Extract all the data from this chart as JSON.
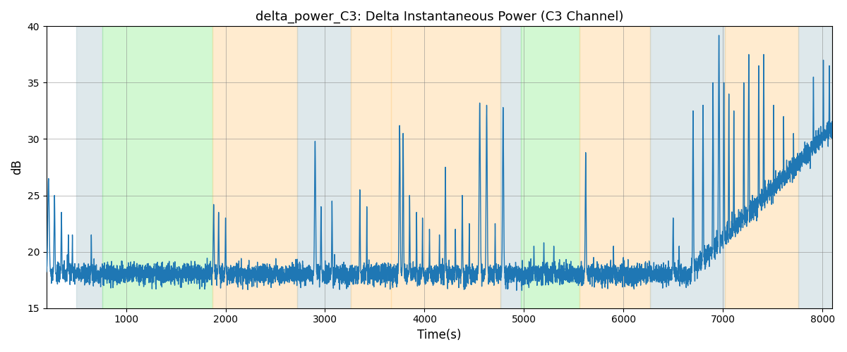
{
  "title": "delta_power_C3: Delta Instantaneous Power (C3 Channel)",
  "xlabel": "Time(s)",
  "ylabel": "dB",
  "xlim": [
    200,
    8100
  ],
  "ylim": [
    15,
    40
  ],
  "yticks": [
    15,
    20,
    25,
    30,
    35,
    40
  ],
  "xticks": [
    1000,
    2000,
    3000,
    4000,
    5000,
    6000,
    7000,
    8000
  ],
  "line_color": "#1f77b4",
  "line_width": 1.0,
  "bg_bands": [
    {
      "xmin": 500,
      "xmax": 760,
      "color": "#AEC6CF",
      "alpha": 0.4
    },
    {
      "xmin": 760,
      "xmax": 1870,
      "color": "#90EE90",
      "alpha": 0.4
    },
    {
      "xmin": 1870,
      "xmax": 2720,
      "color": "#FFD9A0",
      "alpha": 0.5
    },
    {
      "xmin": 2720,
      "xmax": 3260,
      "color": "#AEC6CF",
      "alpha": 0.4
    },
    {
      "xmin": 3260,
      "xmax": 3660,
      "color": "#FFD9A0",
      "alpha": 0.5
    },
    {
      "xmin": 3660,
      "xmax": 4760,
      "color": "#FFD9A0",
      "alpha": 0.5
    },
    {
      "xmin": 4760,
      "xmax": 4970,
      "color": "#AEC6CF",
      "alpha": 0.4
    },
    {
      "xmin": 4970,
      "xmax": 5560,
      "color": "#90EE90",
      "alpha": 0.4
    },
    {
      "xmin": 5560,
      "xmax": 6270,
      "color": "#FFD9A0",
      "alpha": 0.5
    },
    {
      "xmin": 6270,
      "xmax": 7020,
      "color": "#AEC6CF",
      "alpha": 0.4
    },
    {
      "xmin": 7020,
      "xmax": 7760,
      "color": "#FFD9A0",
      "alpha": 0.5
    },
    {
      "xmin": 7760,
      "xmax": 8100,
      "color": "#AEC6CF",
      "alpha": 0.4
    }
  ],
  "seed": 42,
  "t_start": 200,
  "t_end": 8100,
  "n_points": 7901
}
